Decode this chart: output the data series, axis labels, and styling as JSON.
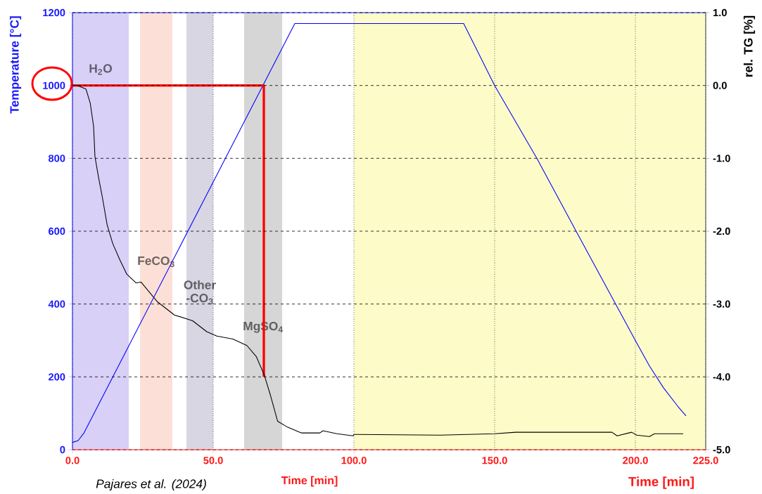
{
  "chart_data": {
    "type": "line",
    "xlabel": "Time [min]",
    "ylabel": "Temperature [°C]",
    "y2label": "rel. TG  [%]",
    "annotations": [
      "Time [min]",
      "Pajares et al. (2024)"
    ],
    "xlim": [
      0,
      225
    ],
    "xticks": [
      {
        "value": 0,
        "label": "0.0"
      },
      {
        "value": 50,
        "label": "50.0"
      },
      {
        "value": 100,
        "label": "100.0"
      },
      {
        "value": 150,
        "label": "150.0"
      },
      {
        "value": 200,
        "label": "200.0"
      },
      {
        "value": 225,
        "label": "225.0"
      }
    ],
    "ylim": [
      0,
      1200
    ],
    "yticks": [
      0,
      200,
      400,
      600,
      800,
      1000,
      1200
    ],
    "y2lim": [
      -5,
      1
    ],
    "y2ticks": [
      {
        "value": -5,
        "label": "-5.0"
      },
      {
        "value": -4,
        "label": "-4.0"
      },
      {
        "value": -3,
        "label": "-3.0"
      },
      {
        "value": -2,
        "label": "-2.0"
      },
      {
        "value": -1,
        "label": "-1.0"
      },
      {
        "value": 0,
        "label": "0.0"
      },
      {
        "value": 1,
        "label": "1.0"
      }
    ],
    "grid": true,
    "bands": [
      {
        "axis": "x",
        "from": 0,
        "to": 20,
        "label": "H$_{2}$O",
        "color": "#d8d0f6"
      },
      {
        "axis": "x",
        "from": 24,
        "to": 35.5,
        "label": "FeCO$_{3}$",
        "color": "#fce0d8"
      },
      {
        "axis": "x",
        "from": 40.5,
        "to": 50,
        "label": "Other -CO$_{3}$",
        "color": "#d8d6e2"
      },
      {
        "axis": "x",
        "from": 61,
        "to": 74.5,
        "label": "MgSO$_{4}$",
        "color": "#d6d6d6"
      },
      {
        "axis": "x",
        "from": 100,
        "to": 225,
        "color": "#fdfcc8"
      }
    ],
    "series": [
      {
        "color": "#0000ff",
        "x": [
          0,
          2,
          4,
          79,
          139,
          150,
          165,
          180,
          193,
          200,
          205,
          210,
          215,
          218
        ],
        "values": [
          20,
          25,
          45,
          1170,
          1170,
          1000,
          800,
          585,
          400,
          300,
          230,
          170,
          120,
          93
        ]
      },
      {
        "color": "#000000",
        "axis": "y2",
        "x": [
          0,
          1.8,
          4.8,
          6.3,
          7.5,
          8,
          9.3,
          10.6,
          12.3,
          14.3,
          16.8,
          19.3,
          22.6,
          24.4,
          27.6,
          30.2,
          36.2,
          42.7,
          47.7,
          51.3,
          57,
          62,
          65.3,
          68.1,
          70.4,
          72.9,
          76.4,
          81.4,
          87.9,
          89,
          94,
          99.7,
          100,
          130.7,
          150,
          157.5,
          191.7,
          193.5,
          198.7,
          200.5,
          205,
          206.8,
          217
        ],
        "values": [
          0,
          0,
          -0.05,
          -0.24,
          -0.56,
          -0.98,
          -1.27,
          -1.53,
          -1.91,
          -2.17,
          -2.39,
          -2.59,
          -2.71,
          -2.7,
          -2.85,
          -2.97,
          -3.15,
          -3.23,
          -3.38,
          -3.44,
          -3.48,
          -3.57,
          -3.72,
          -3.97,
          -4.26,
          -4.61,
          -4.69,
          -4.77,
          -4.77,
          -4.74,
          -4.78,
          -4.81,
          -4.79,
          -4.8,
          -4.78,
          -4.76,
          -4.76,
          -4.81,
          -4.76,
          -4.8,
          -4.82,
          -4.78,
          -4.78
        ]
      },
      {
        "color": "#ff0000",
        "x": [
          0,
          68,
          68
        ],
        "values": [
          1000,
          1000,
          200
        ]
      }
    ]
  }
}
